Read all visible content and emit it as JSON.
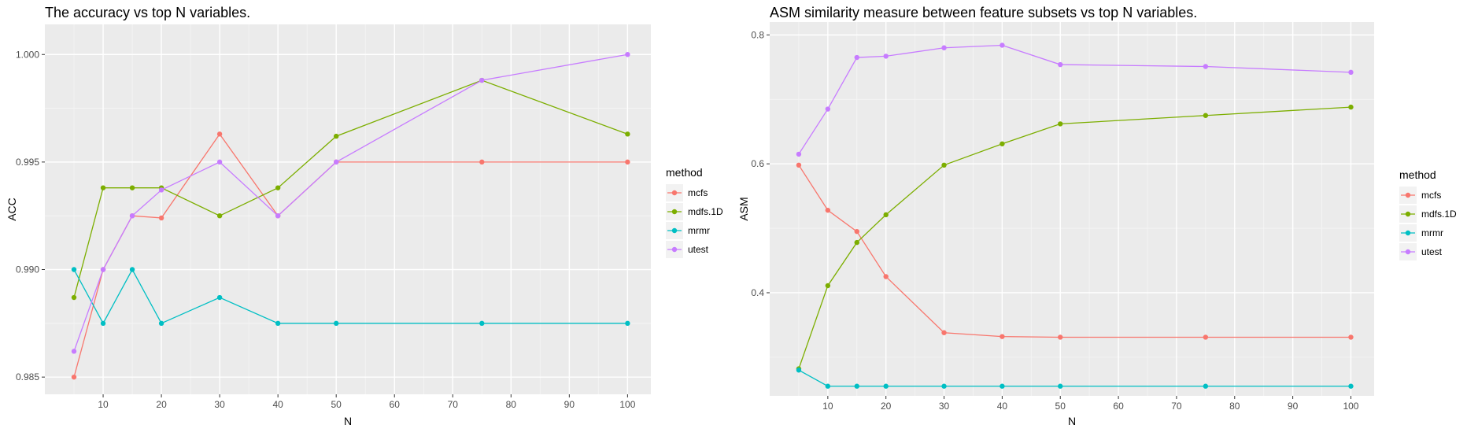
{
  "chart_data": [
    {
      "type": "line",
      "title": "The accuracy vs top N variables.",
      "xlabel": "N",
      "ylabel": "ACC",
      "x": [
        5,
        10,
        15,
        20,
        30,
        40,
        50,
        75,
        100
      ],
      "xticks": [
        10,
        20,
        30,
        40,
        50,
        60,
        70,
        80,
        90,
        100
      ],
      "yticks": [
        "0.985",
        "0.990",
        "0.995",
        "1.000"
      ],
      "xlim": [
        0,
        104
      ],
      "ylim": [
        0.9842,
        1.0014
      ],
      "grid": true,
      "legend": {
        "title": "method",
        "position": "right"
      },
      "series": [
        {
          "name": "mcfs",
          "color": "#F8766D",
          "values": [
            0.985,
            0.99,
            0.9925,
            0.9924,
            0.9963,
            0.9925,
            0.995,
            0.995,
            0.995
          ]
        },
        {
          "name": "mdfs.1D",
          "color": "#7CAE00",
          "values": [
            0.9887,
            0.9938,
            0.9938,
            0.9938,
            0.9925,
            0.9938,
            0.9962,
            0.9988,
            0.9963
          ]
        },
        {
          "name": "mrmr",
          "color": "#00BFC4",
          "values": [
            0.99,
            0.9875,
            0.99,
            0.9875,
            0.9887,
            0.9875,
            0.9875,
            0.9875,
            0.9875
          ]
        },
        {
          "name": "utest",
          "color": "#C77CFF",
          "values": [
            0.9862,
            0.99,
            0.9925,
            0.9937,
            0.995,
            0.9925,
            0.995,
            0.9988,
            1.0
          ]
        }
      ]
    },
    {
      "type": "line",
      "title": "ASM similarity measure between feature subsets vs top N variables.",
      "xlabel": "N",
      "ylabel": "ASM",
      "x": [
        5,
        10,
        15,
        20,
        30,
        40,
        50,
        75,
        100
      ],
      "xticks": [
        10,
        20,
        30,
        40,
        50,
        60,
        70,
        80,
        90,
        100
      ],
      "yticks": [
        "0.4",
        "0.6",
        "0.8"
      ],
      "xlim": [
        0,
        104
      ],
      "ylim": [
        0.24,
        0.82
      ],
      "grid": true,
      "legend": {
        "title": "method",
        "position": "right"
      },
      "series": [
        {
          "name": "mcfs",
          "color": "#F8766D",
          "values": [
            0.598,
            0.528,
            0.495,
            0.425,
            0.338,
            0.332,
            0.331,
            0.331,
            0.331
          ]
        },
        {
          "name": "mdfs.1D",
          "color": "#7CAE00",
          "values": [
            0.282,
            0.411,
            0.478,
            0.521,
            0.598,
            0.631,
            0.662,
            0.675,
            0.688
          ]
        },
        {
          "name": "mrmr",
          "color": "#00BFC4",
          "values": [
            0.28,
            0.255,
            0.255,
            0.255,
            0.255,
            0.255,
            0.255,
            0.255,
            0.255
          ]
        },
        {
          "name": "utest",
          "color": "#C77CFF",
          "values": [
            0.615,
            0.685,
            0.765,
            0.767,
            0.78,
            0.784,
            0.754,
            0.751,
            0.742
          ]
        }
      ]
    }
  ]
}
